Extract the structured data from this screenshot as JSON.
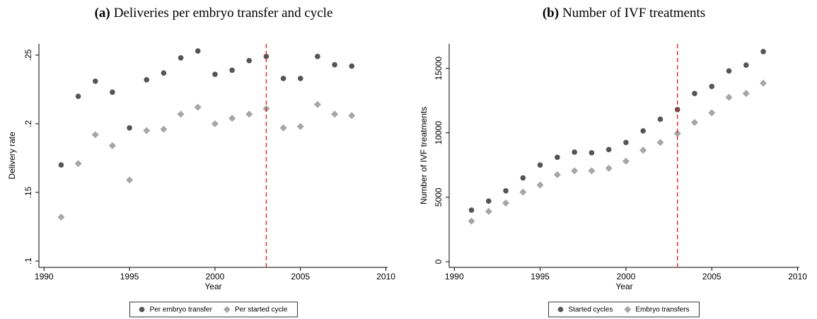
{
  "chart_data": [
    {
      "type": "scatter",
      "panel": "(a)",
      "title": "Deliveries per embryo transfer and cycle",
      "x_label": "Year",
      "y_label": "Delivery rate",
      "x": [
        1991,
        1992,
        1993,
        1994,
        1995,
        1996,
        1997,
        1998,
        1999,
        2000,
        2001,
        2002,
        2003,
        2004,
        2005,
        2006,
        2007,
        2008
      ],
      "series": [
        {
          "name": "Per embryo transfer",
          "color": "#555555",
          "marker": "circle",
          "values": [
            0.17,
            0.22,
            0.231,
            0.223,
            0.197,
            0.232,
            0.237,
            0.248,
            0.253,
            0.236,
            0.239,
            0.246,
            0.249,
            0.233,
            0.233,
            0.249,
            0.243,
            0.242
          ]
        },
        {
          "name": "Per started cycle",
          "color": "#a6a6a6",
          "marker": "diamond",
          "values": [
            0.132,
            0.171,
            0.192,
            0.184,
            0.159,
            0.195,
            0.196,
            0.207,
            0.212,
            0.2,
            0.204,
            0.207,
            0.211,
            0.197,
            0.198,
            0.214,
            0.207,
            0.206
          ]
        }
      ],
      "xlim": [
        1989.7,
        2010.1
      ],
      "xticks": [
        1990,
        1995,
        2000,
        2005,
        2010
      ],
      "ylim": [
        0.0954,
        0.2582
      ],
      "yticks": [
        {
          "value": 0.1,
          "label": ".1"
        },
        {
          "value": 0.15,
          "label": ".15"
        },
        {
          "value": 0.2,
          "label": ".2"
        },
        {
          "value": 0.25,
          "label": ".25"
        }
      ],
      "vline": 2003,
      "vline_color": "#e8262a",
      "grid": false,
      "legend": "bottom"
    },
    {
      "type": "scatter",
      "panel": "(b)",
      "title": "Number of IVF treatments",
      "x_label": "Year",
      "y_label": "Number of IVF treatments",
      "x": [
        1991,
        1992,
        1993,
        1994,
        1995,
        1996,
        1997,
        1998,
        1999,
        2000,
        2001,
        2002,
        2003,
        2004,
        2005,
        2006,
        2007,
        2008
      ],
      "series": [
        {
          "name": "Started cycles",
          "color": "#555555",
          "marker": "circle",
          "values": [
            4000,
            4700,
            5500,
            6500,
            7500,
            8100,
            8500,
            8450,
            8700,
            9250,
            10150,
            11050,
            11800,
            13050,
            13600,
            14800,
            15250,
            16300
          ]
        },
        {
          "name": "Embryo transfers",
          "color": "#a6a6a6",
          "marker": "diamond",
          "values": [
            3150,
            3900,
            4550,
            5400,
            5950,
            6750,
            7050,
            7050,
            7250,
            7800,
            8650,
            9250,
            9950,
            10800,
            11550,
            12750,
            13050,
            13850
          ]
        }
      ],
      "xlim": [
        1989.7,
        2010.1
      ],
      "xticks": [
        1990,
        1995,
        2000,
        2005,
        2010
      ],
      "ylim": [
        -440,
        16900
      ],
      "yticks": [
        0,
        5000,
        10000,
        15000
      ],
      "vline": 2003,
      "vline_color": "#e8262a",
      "grid": false,
      "legend": "bottom"
    }
  ]
}
